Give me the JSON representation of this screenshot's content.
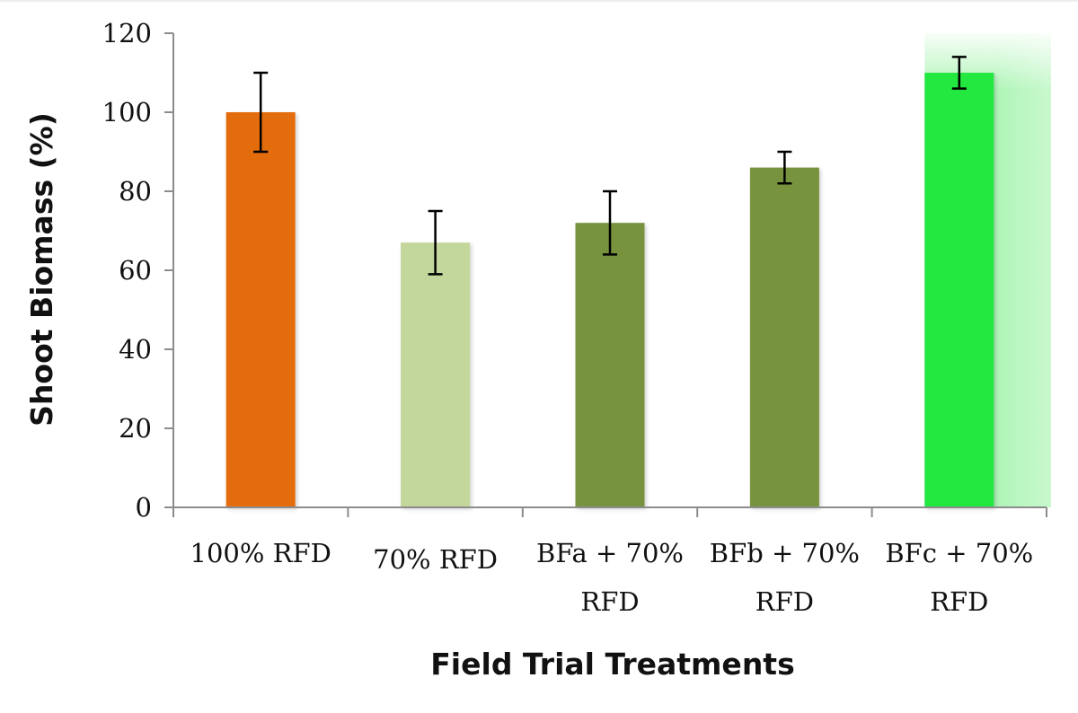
{
  "chart_data": {
    "type": "bar",
    "title": "",
    "xlabel": "Field Trial Treatments",
    "ylabel": "Shoot Biomass (%)",
    "ylim": [
      0,
      120
    ],
    "yticks": [
      0,
      20,
      40,
      60,
      80,
      100,
      120
    ],
    "grid": false,
    "legend": "none",
    "categories": [
      [
        "100% RFD"
      ],
      [
        "70% RFD"
      ],
      [
        "BFa + 70%",
        "RFD"
      ],
      [
        "BFb + 70%",
        "RFD"
      ],
      [
        "BFc + 70%",
        "RFD"
      ]
    ],
    "values": [
      100,
      67,
      72,
      86,
      110
    ],
    "errors": [
      10,
      8,
      8,
      4,
      4
    ],
    "colors": [
      "#e36c0a",
      "#c3d69b",
      "#77933c",
      "#77933c",
      "#22e840"
    ],
    "highlight_glow_color": "#b1f5b9"
  }
}
